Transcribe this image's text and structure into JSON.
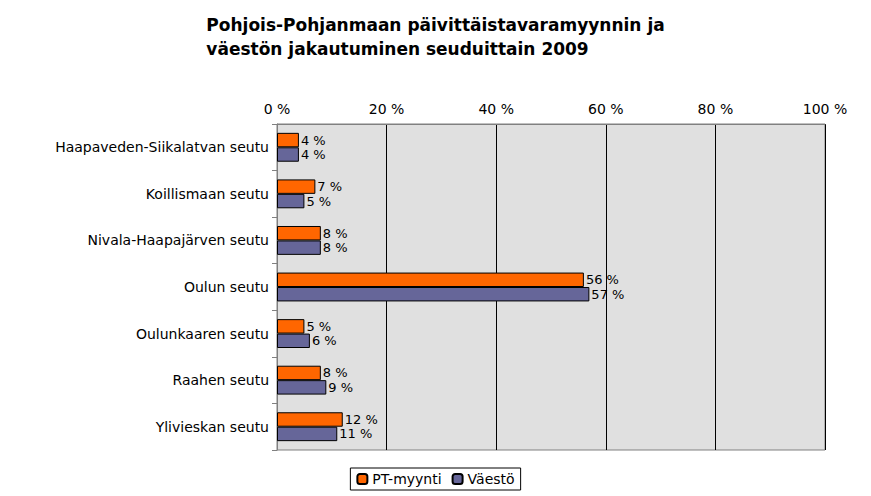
{
  "chart_data": {
    "type": "bar",
    "title": "Pohjois-Pohjanmaan päivittäistavaramyynnin ja\nväestön jakautuminen seuduittain 2009",
    "orientation": "horizontal",
    "categories": [
      "Haapaveden-Siikalatvan seutu",
      "Koillismaan seutu",
      "Nivala-Haapajärven seutu",
      "Oulun seutu",
      "Oulunkaaren seutu",
      "Raahen seutu",
      "Ylivieskan seutu"
    ],
    "series": [
      {
        "name": "PT-myynti",
        "color": "#ff6600",
        "values": [
          4,
          7,
          8,
          56,
          5,
          8,
          12
        ],
        "value_labels": [
          "4 %",
          "7 %",
          "8 %",
          "56 %",
          "5 %",
          "8 %",
          "12 %"
        ]
      },
      {
        "name": "Väestö",
        "color": "#666699",
        "values": [
          4,
          5,
          8,
          57,
          6,
          9,
          11
        ],
        "value_labels": [
          "4 %",
          "5 %",
          "8 %",
          "57 %",
          "6 %",
          "9 %",
          "11 %"
        ]
      }
    ],
    "xlim": [
      0,
      100
    ],
    "xticks": [
      {
        "value": 0,
        "label": "0 %"
      },
      {
        "value": 20,
        "label": "20 %"
      },
      {
        "value": 40,
        "label": "40 %"
      },
      {
        "value": 60,
        "label": "60 %"
      },
      {
        "value": 80,
        "label": "80 %"
      },
      {
        "value": 100,
        "label": "100 %"
      }
    ],
    "grid": true,
    "data_labels": true,
    "legend": "bottom"
  }
}
